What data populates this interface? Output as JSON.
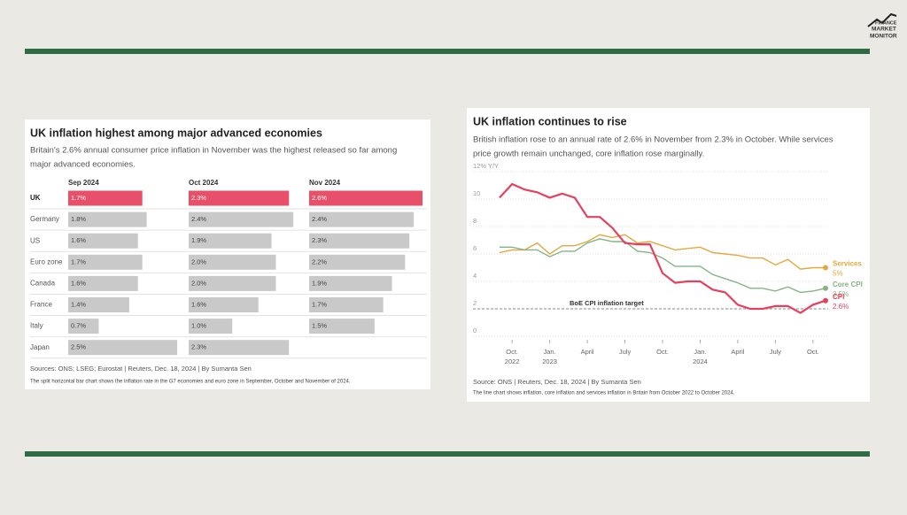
{
  "logo": [
    "FINANCE",
    "MARKET",
    "MONITOR"
  ],
  "chart_data": [
    {
      "type": "bar",
      "orientation": "horizontal",
      "layout": "split",
      "title": "UK inflation highest among major advanced economies",
      "subtitle": [
        "Britain's 2.6% annual consumer price inflation in November was the highest released so far among",
        "major advanced economies."
      ],
      "source": "Sources: ONS; LSEG; Eurostat | Reuters, Dec. 18, 2024 | By Sumanta Sen",
      "note": "The split horizontal bar chart shows the inflation rate in the G7 economies and euro zone in September, October and November of 2024.",
      "categories": [
        "UK",
        "Germany",
        "US",
        "Euro zone",
        "Canada",
        "France",
        "Italy",
        "Japan"
      ],
      "highlight_category": "UK",
      "highlight_color": "#e8506a",
      "xlim": [
        0,
        2.6
      ],
      "series": [
        {
          "name": "Sep 2024",
          "color": "#c9c9c9",
          "values": [
            1.7,
            1.8,
            1.6,
            1.7,
            1.6,
            1.4,
            0.7,
            2.5
          ],
          "value_labels": [
            "1.7%",
            "1.8%",
            "1.6%",
            "1.7%",
            "1.6%",
            "1.4%",
            "0.7%",
            "2.5%"
          ]
        },
        {
          "name": "Oct 2024",
          "color": "#c9c9c9",
          "values": [
            2.3,
            2.4,
            1.9,
            2.0,
            2.0,
            1.6,
            1.0,
            2.3
          ],
          "value_labels": [
            "2.3%",
            "2.4%",
            "1.9%",
            "2.0%",
            "2.0%",
            "1.6%",
            "1.0%",
            "2.3%"
          ]
        },
        {
          "name": "Nov 2024",
          "color": "#c9c9c9",
          "values": [
            2.6,
            2.4,
            2.3,
            2.2,
            1.9,
            1.7,
            1.5,
            null
          ],
          "value_labels": [
            "2.6%",
            "2.4%",
            "2.3%",
            "2.2%",
            "1.9%",
            "1.7%",
            "1.5%",
            null
          ]
        }
      ]
    },
    {
      "type": "line",
      "title": "UK inflation continues to rise",
      "subtitle": [
        "British inflation rose to an annual rate of 2.6% in November from 2.3% in October. While services",
        "price growth remain unchanged, core inflation rose marginally."
      ],
      "source": "Source: ONS | Reuters, Dec. 18, 2024 | By Sumanta Sen",
      "note": "The line chart shows inflation, core inflation and services inflation in Britain from October 2022 to October 2024.",
      "x": [
        "2022-09",
        "2022-10",
        "2022-11",
        "2022-12",
        "2023-01",
        "2023-02",
        "2023-03",
        "2023-04",
        "2023-05",
        "2023-06",
        "2023-07",
        "2023-08",
        "2023-09",
        "2023-10",
        "2023-11",
        "2023-12",
        "2024-01",
        "2024-02",
        "2024-03",
        "2024-04",
        "2024-05",
        "2024-06",
        "2024-07",
        "2024-08",
        "2024-09",
        "2024-10",
        "2024-11"
      ],
      "xticks": [
        {
          "value": "2022-10",
          "label": "Oct. 2022"
        },
        {
          "value": "2023-01",
          "label": "Jan. 2023"
        },
        {
          "value": "2023-04",
          "label": "April"
        },
        {
          "value": "2023-07",
          "label": "July"
        },
        {
          "value": "2023-10",
          "label": "Oct."
        },
        {
          "value": "2024-01",
          "label": "Jan. 2024"
        },
        {
          "value": "2024-04",
          "label": "April"
        },
        {
          "value": "2024-07",
          "label": "July"
        },
        {
          "value": "2024-10",
          "label": "Oct."
        }
      ],
      "ylim": [
        0,
        12
      ],
      "yticks": [
        0,
        2,
        4,
        6,
        8,
        10,
        {
          "value": 12,
          "label": "12% Y/Y"
        }
      ],
      "grid": true,
      "target": {
        "value": 2,
        "label": "BoE CPI inflation target"
      },
      "series": [
        {
          "name": "Services",
          "end_label": "5%",
          "color": "#e3a940",
          "values": [
            6.1,
            6.3,
            6.3,
            6.8,
            6.0,
            6.6,
            6.6,
            6.9,
            7.4,
            7.2,
            7.4,
            6.8,
            6.9,
            6.6,
            6.3,
            6.4,
            6.5,
            6.1,
            6.0,
            5.9,
            5.7,
            5.7,
            5.2,
            5.6,
            4.9,
            5.0,
            5.0
          ]
        },
        {
          "name": "Core CPI",
          "end_label": "3.5%",
          "color": "#86b386",
          "values": [
            6.5,
            6.5,
            6.3,
            6.3,
            5.8,
            6.2,
            6.2,
            6.8,
            7.1,
            6.9,
            6.9,
            6.2,
            6.1,
            5.7,
            5.1,
            5.1,
            5.1,
            4.5,
            4.2,
            3.9,
            3.5,
            3.5,
            3.3,
            3.6,
            3.2,
            3.3,
            3.5
          ]
        },
        {
          "name": "CPI",
          "end_label": "2.6%",
          "color": "#e6405e",
          "values": [
            10.1,
            11.1,
            10.7,
            10.5,
            10.1,
            10.4,
            10.1,
            8.7,
            8.7,
            7.9,
            6.8,
            6.7,
            6.7,
            4.6,
            3.9,
            4.0,
            4.0,
            3.4,
            3.2,
            2.3,
            2.0,
            2.0,
            2.2,
            2.2,
            1.7,
            2.3,
            2.6
          ]
        }
      ]
    }
  ]
}
